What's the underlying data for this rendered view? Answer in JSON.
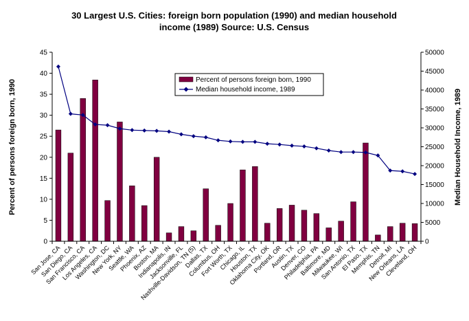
{
  "chart_data": {
    "type": "bar",
    "title_lines": [
      "30 Largest U.S. Cities:  foreign born population (1990) and median household",
      "income (1989)  Source:  U.S. Census"
    ],
    "ylabel_left": "Percent of persons foreign born, 1990",
    "ylabel_right": "Median Household Income, 1989",
    "ylim_left": [
      0,
      45
    ],
    "yticks_left": [
      0,
      5,
      10,
      15,
      20,
      25,
      30,
      35,
      40,
      45
    ],
    "ylim_right": [
      0,
      50000
    ],
    "yticks_right": [
      0,
      5000,
      10000,
      15000,
      20000,
      25000,
      30000,
      35000,
      40000,
      45000,
      50000
    ],
    "legend_position": "top-center",
    "categories": [
      "San Jose, CA",
      "San Diego, CA",
      "San Francisco, CA",
      "Los Angeles, CA",
      "Washington, DC",
      "New York, NY",
      "Seattle, WA",
      "Phoenix, AZ",
      "Boston, MA",
      "Indianapolis, IN",
      "Jacksonville, FL",
      "Nashville-Davidson, TN (5)",
      "Dallas, TX",
      "Columbus, OH",
      "Fort Worth, TX",
      "Chicago, IL",
      "Houston, TX",
      "Oklahoma City, OK",
      "Portland, OR",
      "Austin, TX",
      "Denver, CO",
      "Philadelphia, PA",
      "Baltimore, MD",
      "Milwaukee, WI",
      "San Antonio, TX",
      "El Paso, TX",
      "Memphis, TN",
      "Detroit, MI",
      "New Orleans, LA",
      "Cleveland, OH"
    ],
    "series": [
      {
        "name": "Percent of persons foreign born, 1990",
        "type": "bar",
        "axis": "left",
        "color": "#800040",
        "values": [
          26.5,
          21,
          34,
          38.4,
          9.7,
          28.4,
          13.2,
          8.5,
          20,
          2,
          3.5,
          2.5,
          12.5,
          3.8,
          9,
          17,
          17.8,
          4.3,
          7.8,
          8.6,
          7.4,
          6.6,
          3.2,
          4.8,
          9.4,
          23.4,
          1.5,
          3.5,
          4.3,
          4.2
        ]
      },
      {
        "name": "Median household income, 1989",
        "type": "line",
        "axis": "right",
        "color": "#000080",
        "values": [
          46200,
          33700,
          33400,
          30900,
          30700,
          29800,
          29400,
          29300,
          29200,
          29000,
          28300,
          27800,
          27500,
          26700,
          26400,
          26300,
          26300,
          25800,
          25600,
          25300,
          25100,
          24600,
          24000,
          23600,
          23600,
          23500,
          22700,
          18700,
          18500,
          17800
        ]
      }
    ]
  }
}
